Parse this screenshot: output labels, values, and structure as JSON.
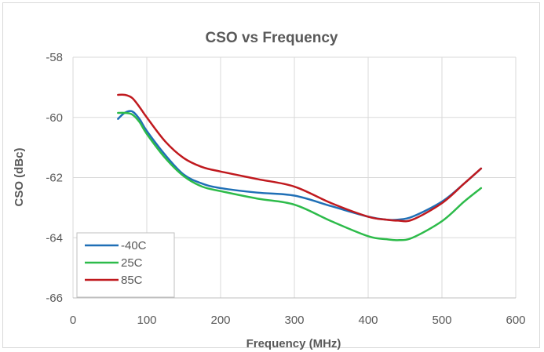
{
  "chart_data": {
    "type": "line",
    "title": "CSO vs Frequency",
    "xlabel": "Frequency (MHz)",
    "ylabel": "CSO (dBc)",
    "xlim": [
      0,
      600
    ],
    "ylim": [
      -66,
      -58
    ],
    "x_ticks": [
      "0",
      "100",
      "200",
      "300",
      "400",
      "500",
      "600"
    ],
    "y_ticks": [
      "-58",
      "-60",
      "-62",
      "-64",
      "-66"
    ],
    "grid": true,
    "legend_position": "bottom-left",
    "colors": {
      "-40C": "#1f6fb6",
      "25C": "#2dbb4a",
      "85C": "#c0191e",
      "grid": "#d9d9d9",
      "axis": "#bfbfbf"
    },
    "series": [
      {
        "name": "-40C",
        "x": [
          61,
          70,
          80,
          90,
          100,
          125,
          150,
          175,
          200,
          250,
          300,
          350,
          400,
          425,
          440,
          460,
          500,
          530,
          553
        ],
        "y": [
          -60.05,
          -59.85,
          -59.8,
          -60.05,
          -60.45,
          -61.25,
          -61.9,
          -62.2,
          -62.35,
          -62.5,
          -62.6,
          -62.95,
          -63.3,
          -63.4,
          -63.4,
          -63.3,
          -62.8,
          -62.2,
          -61.7
        ]
      },
      {
        "name": "25C",
        "x": [
          61,
          70,
          80,
          90,
          100,
          125,
          150,
          175,
          200,
          250,
          300,
          350,
          400,
          425,
          440,
          460,
          500,
          530,
          553
        ],
        "y": [
          -59.85,
          -59.85,
          -59.9,
          -60.15,
          -60.55,
          -61.35,
          -61.95,
          -62.3,
          -62.45,
          -62.7,
          -62.9,
          -63.45,
          -63.95,
          -64.05,
          -64.08,
          -64.0,
          -63.45,
          -62.8,
          -62.35
        ]
      },
      {
        "name": "85C",
        "x": [
          61,
          70,
          80,
          90,
          100,
          125,
          150,
          175,
          200,
          250,
          300,
          350,
          400,
          425,
          440,
          460,
          500,
          530,
          553
        ],
        "y": [
          -59.25,
          -59.25,
          -59.35,
          -59.65,
          -60.0,
          -60.8,
          -61.35,
          -61.65,
          -61.8,
          -62.05,
          -62.3,
          -62.85,
          -63.3,
          -63.4,
          -63.43,
          -63.4,
          -62.85,
          -62.2,
          -61.7
        ]
      }
    ]
  }
}
